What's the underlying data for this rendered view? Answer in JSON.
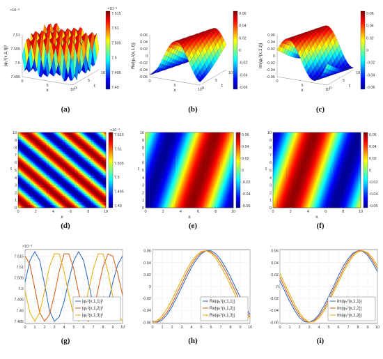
{
  "chart_data": [
    {
      "id": "a",
      "type": "surface3d",
      "caption": "(a)",
      "zlabel": "|φ₁²(x,1,t)|²",
      "xlabel": "x",
      "ylabel": "t",
      "zticks": [
        "7.495",
        "7.5",
        "7.505",
        "7.51"
      ],
      "xticks": [
        "0",
        "5",
        "10"
      ],
      "yticks": [
        "10",
        "5",
        "0"
      ],
      "zexp": "×10⁻³",
      "colorbar": {
        "ticks": [
          "7.515",
          "7.51",
          "7.505",
          "7.5",
          "7.495",
          "7.49"
        ],
        "exp": "×10⁻³"
      },
      "zlim": [
        0.007495,
        0.007515
      ]
    },
    {
      "id": "b",
      "type": "surface3d",
      "caption": "(b)",
      "zlabel": "Re(φ₁²(x,1,t))",
      "xlabel": "x",
      "ylabel": "t",
      "zticks": [
        "-0.06",
        "-0.04",
        "-0.02",
        "0",
        "0.02",
        "0.04",
        "0.06"
      ],
      "xticks": [
        "0",
        "5",
        "10"
      ],
      "yticks": [
        "10",
        "5",
        "0"
      ],
      "colorbar": {
        "ticks": [
          "0.06",
          "0.04",
          "0.02",
          "0",
          "-0.02",
          "-0.04",
          "-0.06"
        ]
      },
      "zlim": [
        -0.06,
        0.06
      ]
    },
    {
      "id": "c",
      "type": "surface3d",
      "caption": "(c)",
      "zlabel": "Im(φ₁²(x,1,t))",
      "xlabel": "x",
      "ylabel": "t",
      "zticks": [
        "-0.06",
        "-0.04",
        "-0.02",
        "0",
        "0.02",
        "0.04",
        "0.06"
      ],
      "xticks": [
        "0",
        "5",
        "10"
      ],
      "yticks": [
        "10",
        "5",
        "0"
      ],
      "colorbar": {
        "ticks": [
          "0.06",
          "0.04",
          "0.02",
          "0",
          "-0.02",
          "-0.04",
          "-0.06"
        ]
      },
      "zlim": [
        -0.06,
        0.06
      ]
    },
    {
      "id": "d",
      "type": "heatmap",
      "caption": "(d)",
      "xlabel": "x",
      "ylabel": "t",
      "xticks": [
        "0",
        "2",
        "4",
        "6",
        "8",
        "10"
      ],
      "yticks": [
        "0",
        "1",
        "2",
        "3",
        "4",
        "5",
        "6",
        "7",
        "8",
        "9",
        "10"
      ],
      "xlim": [
        0,
        10
      ],
      "ylim": [
        0,
        10
      ],
      "colorbar": {
        "ticks": [
          "7.515",
          "7.51",
          "7.505",
          "7.5",
          "7.495",
          "7.49"
        ],
        "exp": "×10⁻³"
      }
    },
    {
      "id": "e",
      "type": "heatmap",
      "caption": "(e)",
      "xlabel": "x",
      "ylabel": "t",
      "xticks": [
        "0",
        "2",
        "4",
        "6",
        "8",
        "10"
      ],
      "yticks": [
        "0",
        "1",
        "2",
        "3",
        "4",
        "5",
        "6",
        "7",
        "8",
        "9",
        "10"
      ],
      "xlim": [
        0,
        10
      ],
      "ylim": [
        0,
        10
      ],
      "colorbar": {
        "ticks": [
          "0.06",
          "0.04",
          "0.02",
          "0",
          "-0.02",
          "-0.04",
          "-0.06"
        ]
      }
    },
    {
      "id": "f",
      "type": "heatmap",
      "caption": "(f)",
      "xlabel": "x",
      "ylabel": "t",
      "xticks": [
        "0",
        "2",
        "4",
        "6",
        "8",
        "10"
      ],
      "yticks": [
        "0",
        "1",
        "2",
        "3",
        "4",
        "5",
        "6",
        "7",
        "8",
        "9",
        "10"
      ],
      "xlim": [
        0,
        10
      ],
      "ylim": [
        0,
        10
      ],
      "colorbar": {
        "ticks": [
          "0.06",
          "0.04",
          "0.02",
          "0",
          "-0.02",
          "-0.04",
          "-0.06"
        ]
      }
    },
    {
      "id": "g",
      "type": "line",
      "caption": "(g)",
      "xlim": [
        0,
        10
      ],
      "ylim": [
        0.007484,
        0.007518
      ],
      "xticks": [
        "0",
        "1",
        "2",
        "3",
        "4",
        "5",
        "6",
        "7",
        "8",
        "9",
        "10"
      ],
      "yticks": [
        "7.515",
        "7.51",
        "7.505",
        "7.5",
        "7.495",
        "7.49",
        "7.485"
      ],
      "yexp": "×10⁻³",
      "legend_position": "lower-right",
      "series": [
        {
          "name": "|φ₁²(x,1,1)|²",
          "color": "#3a6fc4",
          "x": [
            0,
            0.5,
            1,
            1.5,
            2,
            2.5,
            3,
            3.5,
            4,
            4.5,
            5,
            5.5,
            6,
            6.5,
            7,
            7.5,
            8,
            8.5,
            9,
            9.5,
            10
          ],
          "values": [
            0.007503,
            0.007513,
            0.007517,
            0.007513,
            0.007502,
            0.00749,
            0.007485,
            0.007487,
            0.007494,
            0.007504,
            0.007513,
            0.007517,
            0.007513,
            0.007503,
            0.007492,
            0.007486,
            0.007486,
            0.007493,
            0.007503,
            0.007511,
            0.007515
          ]
        },
        {
          "name": "|φ₁²(x,1,2)|²",
          "color": "#d9631e",
          "x": [
            0,
            0.5,
            1,
            1.5,
            2,
            2.5,
            3,
            3.5,
            4,
            4.5,
            5,
            5.5,
            6,
            6.5,
            7,
            7.5,
            8,
            8.5,
            9,
            9.5,
            10
          ],
          "values": [
            0.007515,
            0.007511,
            0.0075,
            0.007489,
            0.007485,
            0.007488,
            0.007497,
            0.007508,
            0.007516,
            0.007516,
            0.007509,
            0.007498,
            0.007489,
            0.007485,
            0.007489,
            0.0075,
            0.00751,
            0.007516,
            0.007515,
            0.007507,
            0.007497
          ]
        },
        {
          "name": "|φ₁²(x,1,3)|²",
          "color": "#e3b119",
          "x": [
            0,
            0.5,
            1,
            1.5,
            2,
            2.5,
            3,
            3.5,
            4,
            4.5,
            5,
            5.5,
            6,
            6.5,
            7,
            7.5,
            8,
            8.5,
            9,
            9.5,
            10
          ],
          "values": [
            0.007499,
            0.007489,
            0.007485,
            0.007489,
            0.007499,
            0.00751,
            0.007516,
            0.007516,
            0.007508,
            0.007497,
            0.007488,
            0.007485,
            0.007489,
            0.007499,
            0.007509,
            0.007516,
            0.007516,
            0.007508,
            0.007496,
            0.007488,
            0.007485
          ]
        }
      ]
    },
    {
      "id": "h",
      "type": "line",
      "caption": "(h)",
      "xlim": [
        0,
        10
      ],
      "ylim": [
        -0.062,
        0.062
      ],
      "xticks": [
        "0",
        "1",
        "2",
        "3",
        "4",
        "5",
        "6",
        "7",
        "8",
        "9",
        "10"
      ],
      "yticks": [
        "0.06",
        "0.04",
        "0.02",
        "0",
        "-0.02",
        "-0.04",
        "-0.06"
      ],
      "legend_position": "lower-right",
      "series": [
        {
          "name": "Re(φ₁²(x,1,1))",
          "color": "#3a6fc4",
          "x": [
            0,
            0.5,
            1,
            1.5,
            2,
            2.5,
            3,
            3.5,
            4,
            4.5,
            5,
            5.5,
            6,
            6.5,
            7,
            7.5,
            8,
            8.5,
            9,
            9.5,
            10
          ],
          "values": [
            -0.058,
            -0.06,
            -0.056,
            -0.047,
            -0.034,
            -0.018,
            -0.001,
            0.016,
            0.032,
            0.045,
            0.055,
            0.06,
            0.06,
            0.055,
            0.045,
            0.032,
            0.016,
            -0.001,
            -0.018,
            -0.034,
            -0.047
          ]
        },
        {
          "name": "Re(φ₁²(x,1,2))",
          "color": "#d9631e",
          "x": [
            0,
            0.5,
            1,
            1.5,
            2,
            2.5,
            3,
            3.5,
            4,
            4.5,
            5,
            5.5,
            6,
            6.5,
            7,
            7.5,
            8,
            8.5,
            9,
            9.5,
            10
          ],
          "values": [
            -0.06,
            -0.059,
            -0.053,
            -0.043,
            -0.029,
            -0.012,
            0.005,
            0.022,
            0.037,
            0.049,
            0.057,
            0.06,
            0.058,
            0.051,
            0.04,
            0.026,
            0.009,
            -0.008,
            -0.025,
            -0.039,
            -0.051
          ]
        },
        {
          "name": "Re(φ₁²(x,1,3))",
          "color": "#e3b119",
          "x": [
            0,
            0.5,
            1,
            1.5,
            2,
            2.5,
            3,
            3.5,
            4,
            4.5,
            5,
            5.5,
            6,
            6.5,
            7,
            7.5,
            8,
            8.5,
            9,
            9.5,
            10
          ],
          "values": [
            -0.06,
            -0.057,
            -0.049,
            -0.037,
            -0.022,
            -0.005,
            0.012,
            0.028,
            0.042,
            0.052,
            0.059,
            0.06,
            0.056,
            0.047,
            0.034,
            0.019,
            0.002,
            -0.015,
            -0.031,
            -0.044,
            -0.054
          ]
        }
      ]
    },
    {
      "id": "i",
      "type": "line",
      "caption": "(i)",
      "xlim": [
        0,
        10
      ],
      "ylim": [
        -0.062,
        0.062
      ],
      "xticks": [
        "0",
        "1",
        "2",
        "3",
        "4",
        "5",
        "6",
        "7",
        "8",
        "9",
        "10"
      ],
      "yticks": [
        "0.06",
        "0.04",
        "0.02",
        "0",
        "-0.02",
        "-0.04",
        "-0.06"
      ],
      "legend_position": "lower-right",
      "series": [
        {
          "name": "Im(φ₁²(x,1,1))",
          "color": "#3a6fc4",
          "x": [
            0,
            0.5,
            1,
            1.5,
            2,
            2.5,
            3,
            3.5,
            4,
            4.5,
            5,
            5.5,
            6,
            6.5,
            7,
            7.5,
            8,
            8.5,
            9,
            9.5,
            10
          ],
          "values": [
            0.01,
            -0.008,
            -0.025,
            -0.04,
            -0.052,
            -0.059,
            -0.06,
            -0.056,
            -0.047,
            -0.033,
            -0.017,
            0.0,
            0.018,
            0.034,
            0.047,
            0.056,
            0.06,
            0.059,
            0.052,
            0.04,
            0.025
          ]
        },
        {
          "name": "Im(φ₁²(x,1,2))",
          "color": "#d9631e",
          "x": [
            0,
            0.5,
            1,
            1.5,
            2,
            2.5,
            3,
            3.5,
            4,
            4.5,
            5,
            5.5,
            6,
            6.5,
            7,
            7.5,
            8,
            8.5,
            9,
            9.5,
            10
          ],
          "values": [
            0.016,
            -0.002,
            -0.019,
            -0.035,
            -0.048,
            -0.057,
            -0.06,
            -0.058,
            -0.05,
            -0.038,
            -0.022,
            -0.005,
            0.012,
            0.029,
            0.043,
            0.054,
            0.06,
            0.06,
            0.055,
            0.044,
            0.03
          ]
        },
        {
          "name": "Im(φ₁²(x,1,3))",
          "color": "#e3b119",
          "x": [
            0,
            0.5,
            1,
            1.5,
            2,
            2.5,
            3,
            3.5,
            4,
            4.5,
            5,
            5.5,
            6,
            6.5,
            7,
            7.5,
            8,
            8.5,
            9,
            9.5,
            10
          ],
          "values": [
            0.022,
            0.004,
            -0.013,
            -0.03,
            -0.044,
            -0.054,
            -0.06,
            -0.059,
            -0.053,
            -0.042,
            -0.027,
            -0.01,
            0.007,
            0.024,
            0.039,
            0.051,
            0.058,
            0.06,
            0.057,
            0.048,
            0.035
          ]
        }
      ]
    }
  ]
}
